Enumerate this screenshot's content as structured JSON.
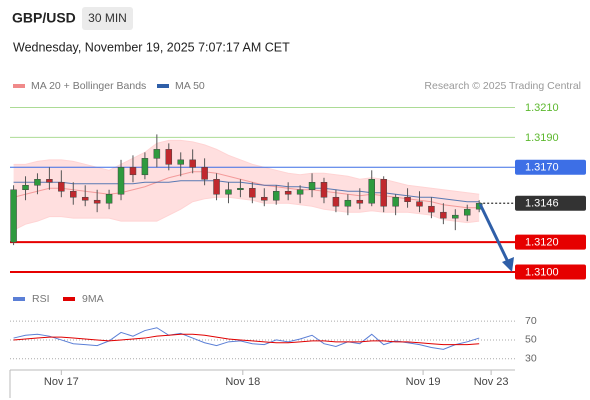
{
  "chart_data": [
    {
      "type": "candlestick",
      "title": "GBP/USD",
      "timeframe": "30 MIN",
      "subtitle": "Wednesday, November 19, 2025 7:07:17 AM CET",
      "source": "Research © 2025 Trading Central",
      "up_color": "#2e9a3e",
      "down_color": "#c0282d",
      "xlim": [
        -0.3,
        42
      ],
      "ylim": [
        1.3092,
        1.3217
      ],
      "open": [
        1.312,
        1.3155,
        1.3158,
        1.3162,
        1.316,
        1.3154,
        1.315,
        1.3148,
        1.3146,
        1.3152,
        1.317,
        1.3165,
        1.3176,
        1.3182,
        1.3172,
        1.3175,
        1.317,
        1.3162,
        1.3152,
        1.3155,
        1.3156,
        1.315,
        1.3148,
        1.3154,
        1.3152,
        1.3155,
        1.316,
        1.315,
        1.3144,
        1.3148,
        1.3146,
        1.3162,
        1.3144,
        1.315,
        1.3147,
        1.3144,
        1.314,
        1.3136,
        1.3138,
        1.3142
      ],
      "high": [
        1.3158,
        1.3164,
        1.3166,
        1.317,
        1.3168,
        1.316,
        1.3158,
        1.3155,
        1.3155,
        1.3175,
        1.3178,
        1.318,
        1.3192,
        1.3186,
        1.318,
        1.3182,
        1.3176,
        1.3166,
        1.316,
        1.3162,
        1.316,
        1.3156,
        1.3158,
        1.316,
        1.3158,
        1.3166,
        1.3163,
        1.3155,
        1.3152,
        1.3156,
        1.3168,
        1.3164,
        1.3152,
        1.3156,
        1.3154,
        1.315,
        1.3146,
        1.3142,
        1.3145,
        1.3148
      ],
      "low": [
        1.3118,
        1.3148,
        1.3152,
        1.3155,
        1.315,
        1.3145,
        1.3144,
        1.314,
        1.3142,
        1.3148,
        1.316,
        1.3162,
        1.317,
        1.3168,
        1.3164,
        1.3166,
        1.3158,
        1.3148,
        1.3146,
        1.315,
        1.3146,
        1.3144,
        1.3145,
        1.3148,
        1.3146,
        1.315,
        1.3146,
        1.314,
        1.3138,
        1.3142,
        1.3144,
        1.314,
        1.3138,
        1.3143,
        1.314,
        1.3136,
        1.3132,
        1.3128,
        1.3134,
        1.314
      ],
      "close": [
        1.3155,
        1.3158,
        1.3162,
        1.316,
        1.3154,
        1.315,
        1.3148,
        1.3146,
        1.3152,
        1.317,
        1.3165,
        1.3176,
        1.3182,
        1.3172,
        1.3175,
        1.317,
        1.3162,
        1.3152,
        1.3155,
        1.3156,
        1.315,
        1.3148,
        1.3154,
        1.3152,
        1.3155,
        1.316,
        1.315,
        1.3144,
        1.3148,
        1.3146,
        1.3162,
        1.3144,
        1.315,
        1.3147,
        1.3144,
        1.314,
        1.3136,
        1.3138,
        1.3142,
        1.3146
      ],
      "series": [
        {
          "name": "MA 20 + Bollinger Bands",
          "color": "#f08a8a",
          "band_color": "#ffd4d4",
          "values": [
            1.315,
            1.3152,
            1.3154,
            1.3156,
            1.3156,
            1.3155,
            1.3154,
            1.3153,
            1.3152,
            1.3153,
            1.3155,
            1.3157,
            1.316,
            1.3163,
            1.3165,
            1.3167,
            1.3167,
            1.3166,
            1.3164,
            1.3162,
            1.316,
            1.3158,
            1.3157,
            1.3156,
            1.3155,
            1.3155,
            1.3154,
            1.3153,
            1.3152,
            1.3151,
            1.3152,
            1.3151,
            1.315,
            1.3149,
            1.3148,
            1.3147,
            1.3145,
            1.3144,
            1.3143,
            1.3143
          ],
          "upper": [
            1.3172,
            1.3172,
            1.3174,
            1.3175,
            1.3175,
            1.3174,
            1.3172,
            1.317,
            1.3168,
            1.3172,
            1.3176,
            1.318,
            1.3186,
            1.3188,
            1.3188,
            1.3187,
            1.3185,
            1.3182,
            1.3178,
            1.3175,
            1.3172,
            1.317,
            1.3168,
            1.3166,
            1.3165,
            1.3166,
            1.3166,
            1.3165,
            1.3164,
            1.3162,
            1.3163,
            1.3162,
            1.316,
            1.3158,
            1.3157,
            1.3156,
            1.3155,
            1.3154,
            1.3153,
            1.3152
          ],
          "lower": [
            1.3128,
            1.3132,
            1.3134,
            1.3137,
            1.3137,
            1.3136,
            1.3136,
            1.3136,
            1.3136,
            1.3134,
            1.3134,
            1.3134,
            1.3134,
            1.3138,
            1.3142,
            1.3147,
            1.3149,
            1.315,
            1.315,
            1.3149,
            1.3148,
            1.3146,
            1.3146,
            1.3146,
            1.3145,
            1.3144,
            1.3142,
            1.3141,
            1.314,
            1.314,
            1.3141,
            1.314,
            1.314,
            1.314,
            1.3139,
            1.3138,
            1.3135,
            1.3134,
            1.3133,
            1.3134
          ]
        },
        {
          "name": "MA 50",
          "color": "#2f5fa8",
          "values": [
            1.316,
            1.316,
            1.316,
            1.316,
            1.316,
            1.3159,
            1.3159,
            1.3159,
            1.3159,
            1.3159,
            1.3159,
            1.316,
            1.316,
            1.316,
            1.3161,
            1.3161,
            1.3161,
            1.3161,
            1.316,
            1.316,
            1.3159,
            1.3158,
            1.3158,
            1.3157,
            1.3157,
            1.3156,
            1.3156,
            1.3155,
            1.3154,
            1.3154,
            1.3153,
            1.3153,
            1.3152,
            1.3151,
            1.315,
            1.315,
            1.3149,
            1.3148,
            1.3147,
            1.3147
          ]
        }
      ],
      "levels": [
        {
          "value": 1.321,
          "label": "1.3210",
          "color": "#5cb82e",
          "style": "plain"
        },
        {
          "value": 1.319,
          "label": "1.3190",
          "color": "#5cb82e",
          "style": "plain"
        },
        {
          "value": 1.317,
          "label": "1.3170",
          "color": "#3d6fe6",
          "style": "box"
        },
        {
          "value": 1.3146,
          "label": "1.3146",
          "color": "#333333",
          "style": "dotted"
        },
        {
          "value": 1.312,
          "label": "1.3120",
          "color": "#e60000",
          "style": "box"
        },
        {
          "value": 1.31,
          "label": "1.3100",
          "color": "#e60000",
          "style": "box"
        }
      ]
    },
    {
      "type": "line",
      "xlim": [
        -0.3,
        42
      ],
      "ylim": [
        18,
        84
      ],
      "yticks": [
        30,
        50,
        70
      ],
      "grid": true,
      "series": [
        {
          "name": "RSI",
          "color": "#5b7fd6",
          "values": [
            52,
            55,
            56,
            54,
            50,
            46,
            45,
            44,
            49,
            58,
            54,
            60,
            63,
            55,
            57,
            52,
            47,
            44,
            48,
            49,
            46,
            45,
            50,
            48,
            51,
            55,
            46,
            43,
            48,
            46,
            56,
            45,
            49,
            47,
            45,
            42,
            40,
            45,
            48,
            52
          ]
        },
        {
          "name": "9MA",
          "color": "#e00000",
          "values": [
            50,
            51,
            52,
            53,
            53,
            52,
            51,
            50,
            49,
            50,
            51,
            52,
            54,
            55,
            56,
            56,
            55,
            53,
            51,
            50,
            49,
            48,
            47,
            47,
            48,
            49,
            49,
            48,
            48,
            48,
            49,
            49,
            48,
            48,
            47,
            46,
            45,
            45,
            45,
            46
          ]
        }
      ],
      "xticks": [
        {
          "value": 4,
          "label": "Nov 17"
        },
        {
          "value": 19.2,
          "label": "Nov 18"
        },
        {
          "value": 34.3,
          "label": "Nov 19"
        },
        {
          "value": 40,
          "label": "Nov 23"
        }
      ]
    }
  ]
}
